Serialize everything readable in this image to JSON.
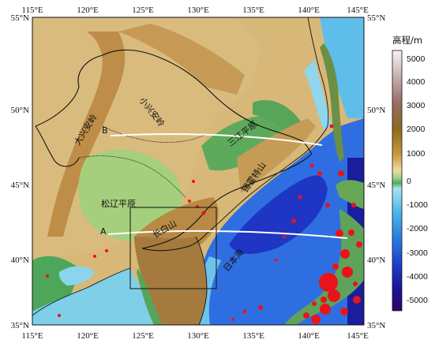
{
  "map": {
    "lon_labels": [
      "115°E",
      "120°E",
      "125°E",
      "130°E",
      "135°E",
      "140°E",
      "145°E"
    ],
    "lat_labels": [
      "55°N",
      "50°N",
      "45°N",
      "40°N",
      "35°N"
    ]
  },
  "places": {
    "da_xing_an_ling": "大兴安岭",
    "xiao_xing_an_ling": "小兴安岭",
    "songliao_plain": "松辽平原",
    "changbai_shan": "长白山",
    "sanjiang_plain": "三江平原",
    "sikhote_alin": "锡霍特山",
    "sea_of_japan": "日本海"
  },
  "profiles": {
    "line_a_label": "A",
    "line_b_label": "B"
  },
  "colorbar": {
    "title": "高程/m",
    "ticks": [
      "5000",
      "4000",
      "3000",
      "2000",
      "1000",
      "0",
      "-1000",
      "-2000",
      "-3000",
      "-4000",
      "-5000"
    ],
    "colors": [
      "#f4f4f4",
      "#b59a93",
      "#8f6a2c",
      "#bf8a2e",
      "#e8cd86",
      "#5fb35f",
      "#8bd4ee",
      "#3aa0e6",
      "#2255d8",
      "#1c10a8",
      "#2a0a70"
    ]
  }
}
